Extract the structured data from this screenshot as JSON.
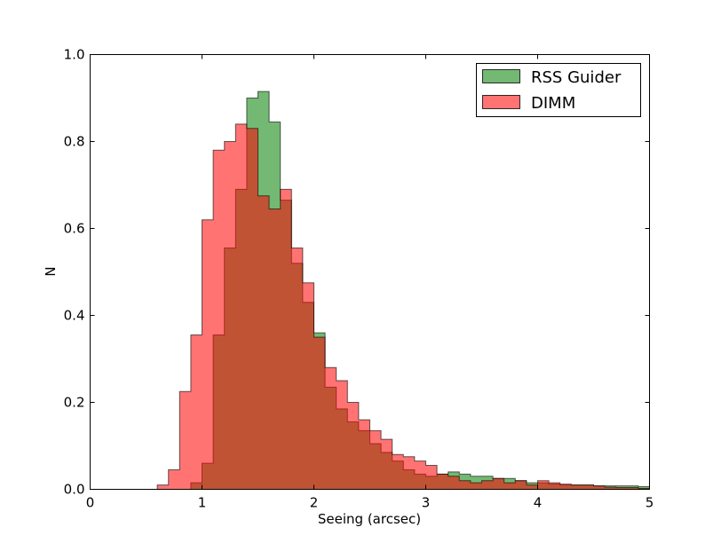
{
  "chart_data": {
    "type": "histogram",
    "xlabel": "Seeing (arcsec)",
    "ylabel": "N",
    "xlim": [
      0,
      5
    ],
    "ylim": [
      0,
      1.0
    ],
    "grid": false,
    "legend_position": "top-right",
    "xticks": [
      0,
      1,
      2,
      3,
      4,
      5
    ],
    "xtick_labels": [
      "0",
      "1",
      "2",
      "3",
      "4",
      "5"
    ],
    "yticks": [
      0,
      0.2,
      0.4,
      0.6,
      0.8,
      1.0
    ],
    "ytick_labels": [
      "0.0",
      "0.2",
      "0.4",
      "0.6",
      "0.8",
      "1.0"
    ],
    "bin_edges": [
      0.6,
      0.7,
      0.8,
      0.9,
      1.0,
      1.1,
      1.2,
      1.3,
      1.4,
      1.5,
      1.6,
      1.7,
      1.8,
      1.9,
      2.0,
      2.1,
      2.2,
      2.3,
      2.4,
      2.5,
      2.6,
      2.7,
      2.8,
      2.9,
      3.0,
      3.1,
      3.2,
      3.3,
      3.4,
      3.5,
      3.6,
      3.7,
      3.8,
      3.9,
      4.0,
      4.1,
      4.2,
      4.3,
      4.4,
      4.5,
      4.6,
      4.7,
      4.8,
      4.9,
      5.0
    ],
    "series": [
      {
        "name": "RSS Guider",
        "color": "#008000",
        "alpha": 0.55,
        "values": [
          0.0,
          0.0,
          0.0,
          0.015,
          0.06,
          0.355,
          0.555,
          0.69,
          0.9,
          0.915,
          0.845,
          0.665,
          0.52,
          0.43,
          0.36,
          0.235,
          0.185,
          0.155,
          0.135,
          0.105,
          0.085,
          0.065,
          0.045,
          0.035,
          0.03,
          0.035,
          0.04,
          0.035,
          0.03,
          0.03,
          0.025,
          0.025,
          0.02,
          0.015,
          0.015,
          0.012,
          0.01,
          0.01,
          0.01,
          0.008,
          0.008,
          0.008,
          0.008,
          0.006
        ]
      },
      {
        "name": "DIMM",
        "color": "#ff0000",
        "alpha": 0.55,
        "values": [
          0.01,
          0.045,
          0.225,
          0.355,
          0.62,
          0.78,
          0.8,
          0.84,
          0.83,
          0.675,
          0.645,
          0.69,
          0.555,
          0.475,
          0.35,
          0.28,
          0.25,
          0.2,
          0.16,
          0.135,
          0.115,
          0.08,
          0.075,
          0.065,
          0.055,
          0.035,
          0.03,
          0.02,
          0.015,
          0.02,
          0.025,
          0.015,
          0.02,
          0.01,
          0.02,
          0.015,
          0.012,
          0.01,
          0.01,
          0.008,
          0.005,
          0.004,
          0.004,
          0.002
        ]
      }
    ]
  }
}
